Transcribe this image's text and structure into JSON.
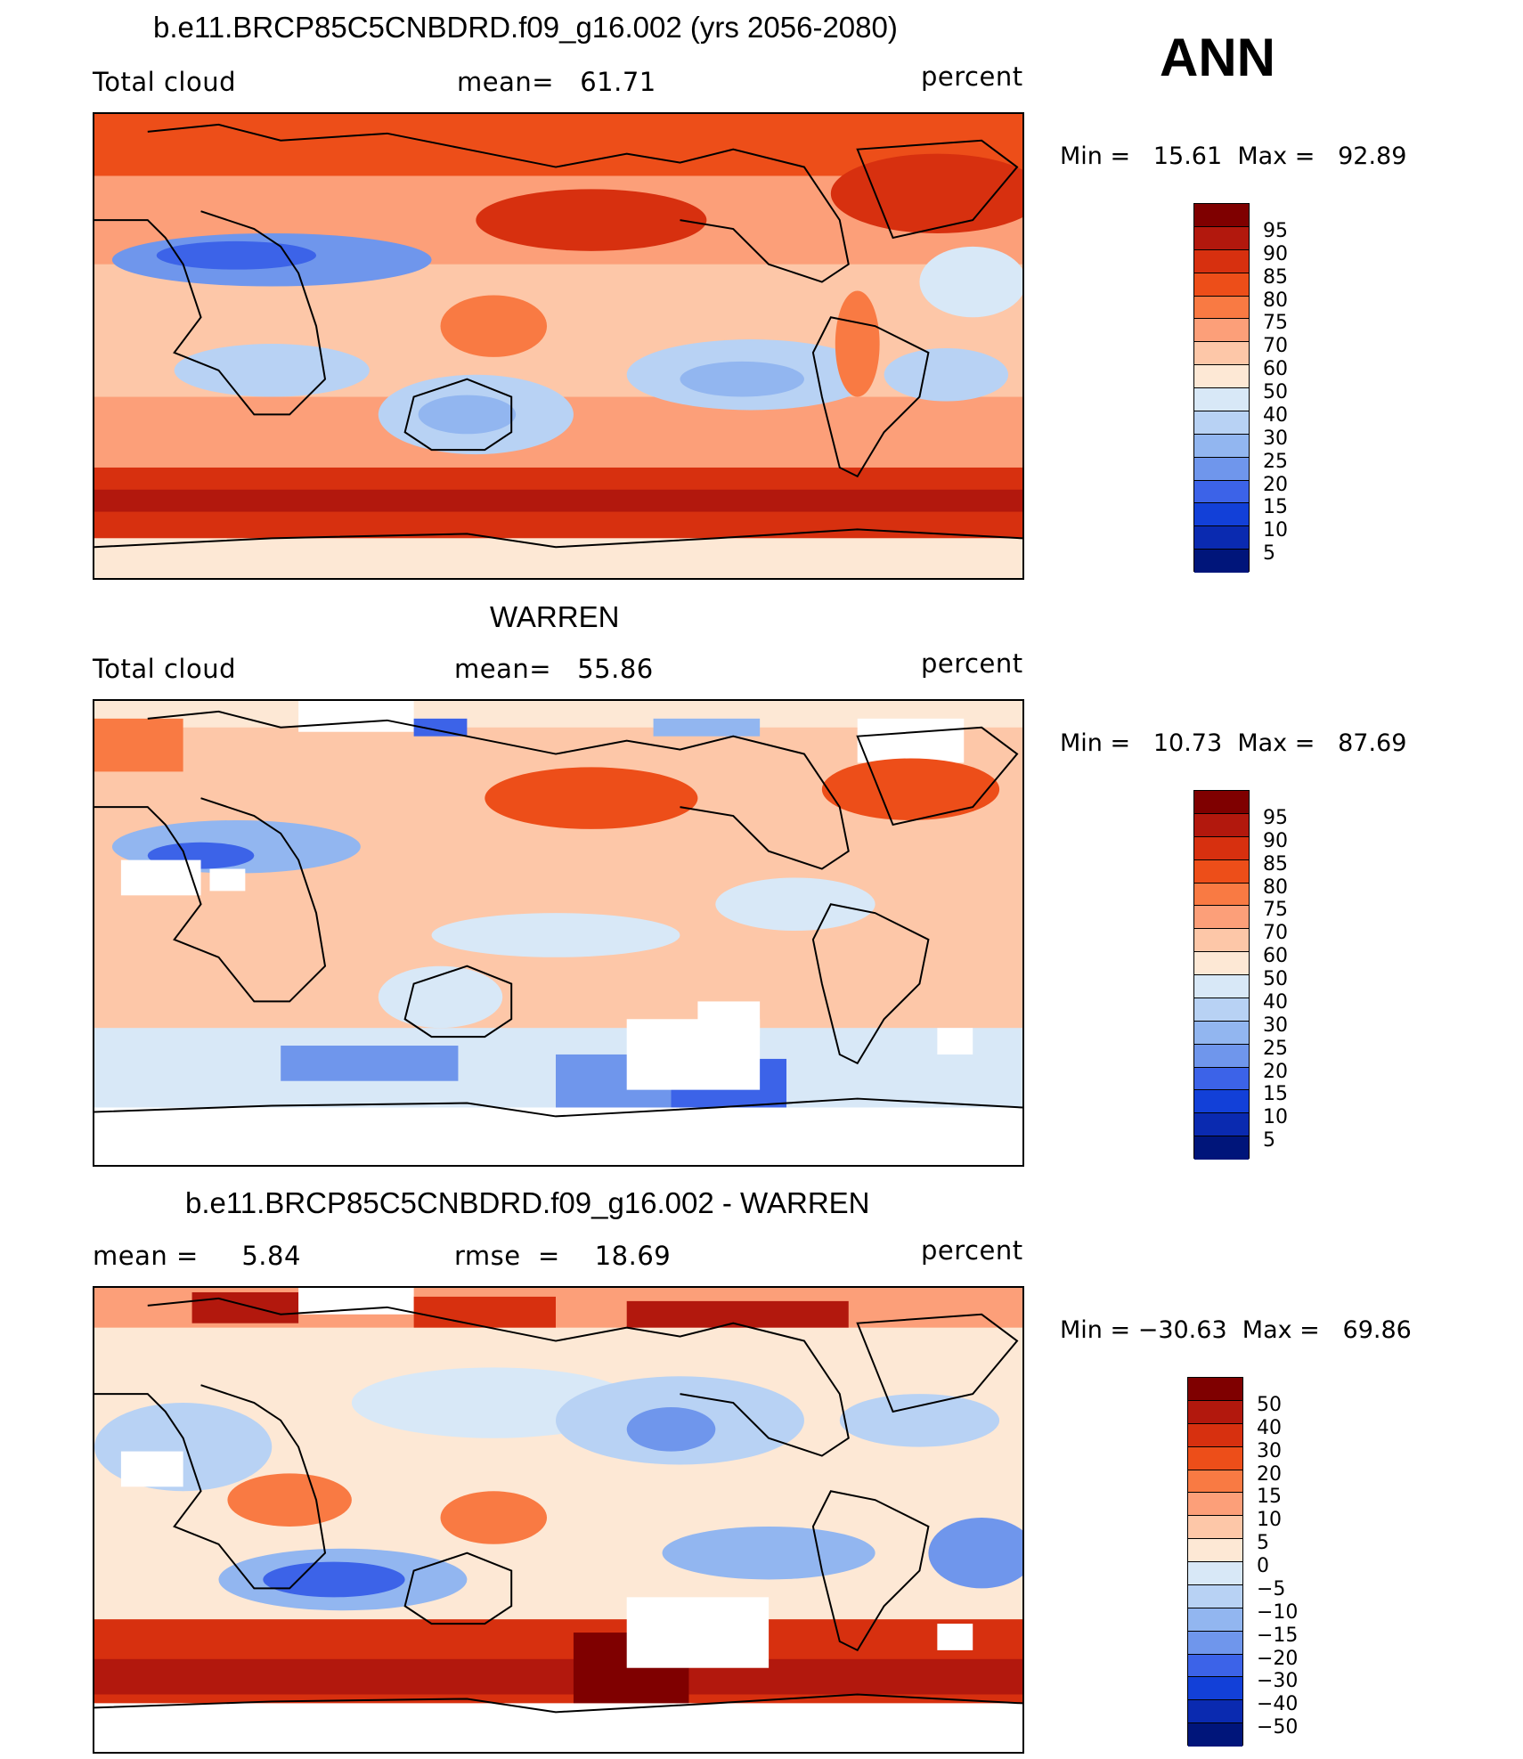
{
  "season_label": "ANN",
  "panels": [
    {
      "title": "b.e11.BRCP85C5CNBDRD.f09_g16.002 (yrs 2056-2080)",
      "left_label": "Total cloud",
      "center_label": "mean=   61.71",
      "right_label": "percent",
      "min_max": "Min =   15.61  Max =   92.89",
      "colorbar_labels": [
        "95",
        "90",
        "85",
        "80",
        "75",
        "70",
        "60",
        "50",
        "40",
        "30",
        "25",
        "20",
        "15",
        "10",
        "5"
      ]
    },
    {
      "title": "WARREN",
      "left_label": "Total cloud",
      "center_label": "mean=   55.86",
      "right_label": "percent",
      "min_max": "Min =   10.73  Max =   87.69",
      "colorbar_labels": [
        "95",
        "90",
        "85",
        "80",
        "75",
        "70",
        "60",
        "50",
        "40",
        "30",
        "25",
        "20",
        "15",
        "10",
        "5"
      ]
    },
    {
      "title": "b.e11.BRCP85C5CNBDRD.f09_g16.002 - WARREN",
      "left_label": "mean =     5.84",
      "center_label": "rmse  =    18.69",
      "right_label": "percent",
      "min_max": "Min = −30.63  Max =   69.86",
      "colorbar_labels": [
        "50",
        "40",
        "30",
        "20",
        "15",
        "10",
        "5",
        "0",
        "−5",
        "−10",
        "−15",
        "−20",
        "−30",
        "−40",
        "−50"
      ]
    }
  ],
  "colors": {
    "colorbar": [
      "#7f0000",
      "#b2180d",
      "#d7300f",
      "#ed4e19",
      "#f97a43",
      "#fc9f79",
      "#fdc7a8",
      "#fde8d5",
      "#d8e8f7",
      "#b8d2f4",
      "#92b6f0",
      "#6f96ec",
      "#3c63e8",
      "#1240d8",
      "#0a2ab0",
      "#00157a"
    ]
  }
}
